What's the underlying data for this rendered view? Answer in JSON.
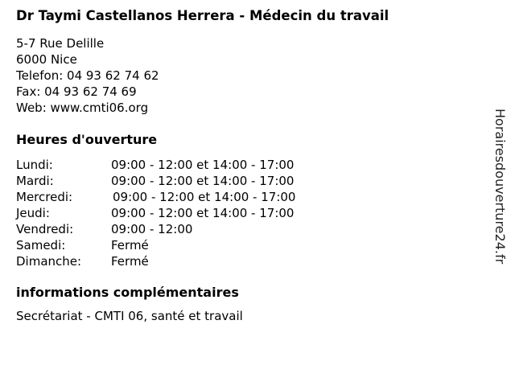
{
  "title": "Dr Taymi Castellanos Herrera - Médecin du travail",
  "address": {
    "street": "5-7 Rue Delille",
    "city": "6000 Nice",
    "phone": "Telefon: 04 93 62 74 62",
    "fax": "Fax: 04 93 62 74 69",
    "web": "Web: www.cmti06.org"
  },
  "hours_heading": "Heures d'ouverture",
  "hours": [
    {
      "day": "Lundi:",
      "time": "09:00 - 12:00 et 14:00 - 17:00"
    },
    {
      "day": "Mardi:",
      "time": "09:00 - 12:00 et 14:00 - 17:00"
    },
    {
      "day": "Mercredi:",
      "time": "09:00 - 12:00 et 14:00 - 17:00"
    },
    {
      "day": "Jeudi:",
      "time": "09:00 - 12:00 et 14:00 - 17:00"
    },
    {
      "day": "Vendredi:",
      "time": "09:00 - 12:00"
    },
    {
      "day": "Samedi:",
      "time": "Fermé"
    },
    {
      "day": "Dimanche:",
      "time": "Fermé"
    }
  ],
  "info_heading": "informations complémentaires",
  "info_text": "Secrétariat - CMTI 06, santé et travail",
  "watermark": "Horairesdouverture24.fr"
}
